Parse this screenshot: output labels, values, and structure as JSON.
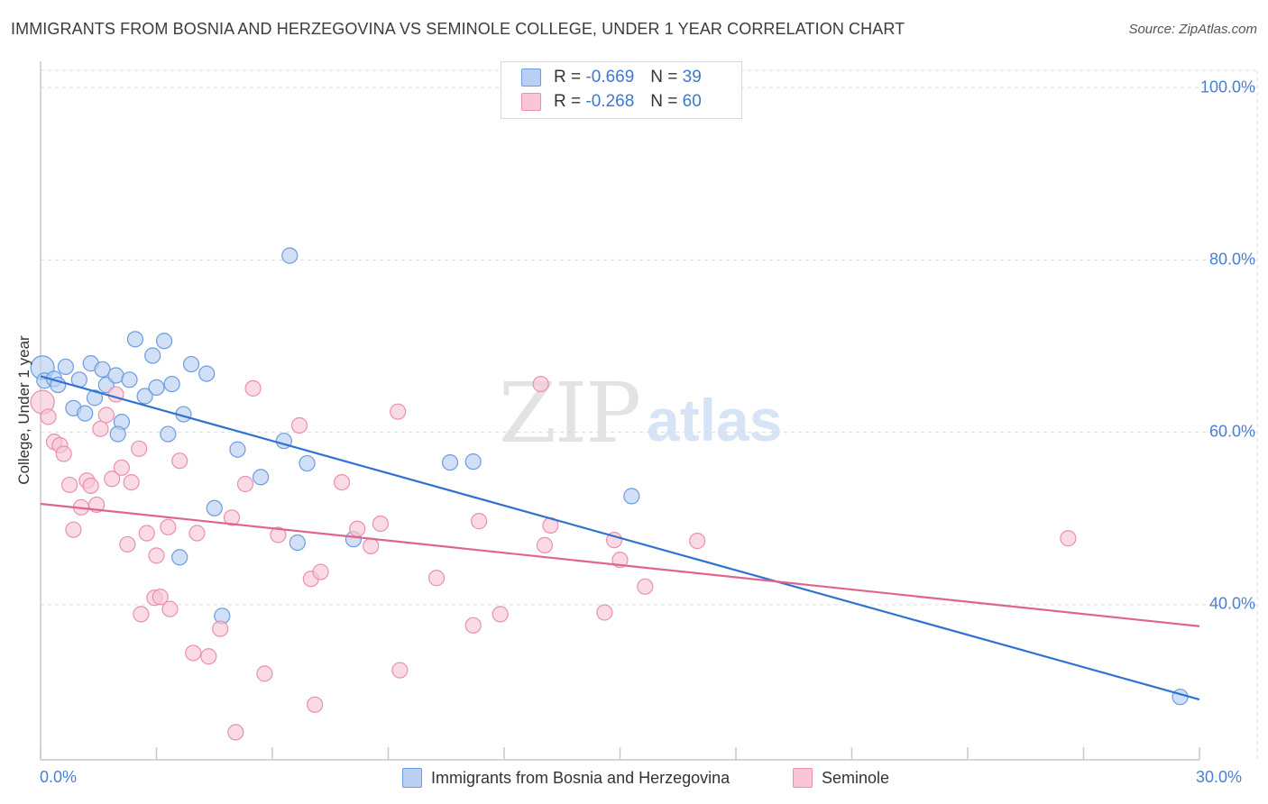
{
  "title": "IMMIGRANTS FROM BOSNIA AND HERZEGOVINA VS SEMINOLE COLLEGE, UNDER 1 YEAR CORRELATION CHART",
  "source": "Source: ZipAtlas.com",
  "watermark": {
    "zip": "ZIP",
    "atlas": "atlas"
  },
  "legend": {
    "rows": [
      {
        "r_label": "R =",
        "r_value": "-0.669",
        "n_label": "N =",
        "n_value": "39"
      },
      {
        "r_label": "R =",
        "r_value": "-0.268",
        "n_label": "N =",
        "n_value": "60"
      }
    ]
  },
  "chart_data": {
    "type": "scatter",
    "title": "IMMIGRANTS FROM BOSNIA AND HERZEGOVINA VS SEMINOLE COLLEGE, UNDER 1 YEAR CORRELATION CHART",
    "xlabel": "",
    "ylabel": "College, Under 1 year",
    "xlim": [
      0,
      30
    ],
    "ylim": [
      22,
      102
    ],
    "x_tick_labels": [
      "0.0%",
      "30.0%"
    ],
    "y_ticks": [
      {
        "value": 40,
        "label": "40.0%"
      },
      {
        "value": 60,
        "label": "60.0%"
      },
      {
        "value": 80,
        "label": "80.0%"
      },
      {
        "value": 100,
        "label": "100.0%"
      }
    ],
    "grid": true,
    "series": [
      {
        "name": "Immigrants from Bosnia and Herzegovina",
        "color": "#6c9be0",
        "fill": "#b9d0f2",
        "line_color": "#2f72d0",
        "trend": {
          "x": [
            0,
            30
          ],
          "y": [
            66.5,
            29.0
          ]
        },
        "points": [
          [
            0.05,
            67.5
          ],
          [
            0.1,
            66.0
          ],
          [
            0.35,
            66.2
          ],
          [
            0.45,
            65.5
          ],
          [
            0.65,
            67.6
          ],
          [
            0.85,
            62.8
          ],
          [
            1.0,
            66.1
          ],
          [
            1.15,
            62.2
          ],
          [
            1.3,
            68.0
          ],
          [
            1.4,
            64.0
          ],
          [
            1.6,
            67.3
          ],
          [
            1.7,
            65.5
          ],
          [
            1.95,
            66.6
          ],
          [
            2.1,
            61.2
          ],
          [
            2.3,
            66.1
          ],
          [
            2.45,
            70.8
          ],
          [
            2.7,
            64.2
          ],
          [
            2.9,
            68.9
          ],
          [
            3.0,
            65.2
          ],
          [
            3.2,
            70.6
          ],
          [
            3.3,
            59.8
          ],
          [
            3.4,
            65.6
          ],
          [
            3.7,
            62.1
          ],
          [
            3.9,
            67.9
          ],
          [
            4.3,
            66.8
          ],
          [
            4.5,
            51.2
          ],
          [
            4.7,
            38.7
          ],
          [
            5.1,
            58.0
          ],
          [
            5.7,
            54.8
          ],
          [
            6.3,
            59.0
          ],
          [
            6.45,
            80.5
          ],
          [
            6.65,
            47.2
          ],
          [
            6.9,
            56.4
          ],
          [
            8.1,
            47.6
          ],
          [
            10.6,
            56.5
          ],
          [
            11.2,
            56.6
          ],
          [
            15.3,
            52.6
          ],
          [
            2.0,
            59.8
          ],
          [
            3.6,
            45.5
          ],
          [
            29.5,
            29.3
          ]
        ]
      },
      {
        "name": "Seminole",
        "color": "#ea8fae",
        "fill": "#f8c6d6",
        "line_color": "#e0648e",
        "trend": {
          "x": [
            0,
            30
          ],
          "y": [
            51.7,
            37.5
          ]
        },
        "points": [
          [
            0.05,
            63.5
          ],
          [
            0.2,
            61.8
          ],
          [
            0.35,
            58.9
          ],
          [
            0.5,
            58.5
          ],
          [
            0.6,
            57.5
          ],
          [
            0.75,
            53.9
          ],
          [
            0.85,
            48.7
          ],
          [
            1.05,
            51.3
          ],
          [
            1.2,
            54.4
          ],
          [
            1.3,
            53.8
          ],
          [
            1.45,
            51.6
          ],
          [
            1.55,
            60.4
          ],
          [
            1.7,
            62.0
          ],
          [
            1.85,
            54.6
          ],
          [
            1.95,
            64.4
          ],
          [
            2.1,
            55.9
          ],
          [
            2.25,
            47.0
          ],
          [
            2.35,
            54.2
          ],
          [
            2.55,
            58.1
          ],
          [
            2.6,
            38.9
          ],
          [
            2.75,
            48.3
          ],
          [
            2.95,
            40.8
          ],
          [
            3.0,
            45.7
          ],
          [
            3.1,
            40.9
          ],
          [
            3.3,
            49.0
          ],
          [
            3.35,
            39.5
          ],
          [
            3.6,
            56.7
          ],
          [
            3.95,
            34.4
          ],
          [
            4.05,
            48.3
          ],
          [
            4.35,
            34.0
          ],
          [
            4.65,
            37.2
          ],
          [
            4.95,
            50.1
          ],
          [
            5.05,
            25.2
          ],
          [
            5.3,
            54.0
          ],
          [
            5.5,
            65.1
          ],
          [
            5.8,
            32.0
          ],
          [
            6.15,
            48.1
          ],
          [
            6.7,
            60.8
          ],
          [
            7.0,
            43.0
          ],
          [
            7.1,
            28.4
          ],
          [
            7.25,
            43.8
          ],
          [
            7.8,
            54.2
          ],
          [
            8.2,
            48.8
          ],
          [
            8.55,
            46.8
          ],
          [
            8.8,
            49.4
          ],
          [
            9.25,
            62.4
          ],
          [
            9.3,
            32.4
          ],
          [
            10.25,
            43.1
          ],
          [
            11.2,
            37.6
          ],
          [
            11.35,
            49.7
          ],
          [
            11.9,
            38.9
          ],
          [
            12.95,
            65.6
          ],
          [
            13.05,
            46.9
          ],
          [
            13.2,
            49.2
          ],
          [
            14.6,
            39.1
          ],
          [
            14.85,
            47.5
          ],
          [
            15.0,
            45.2
          ],
          [
            15.65,
            42.1
          ],
          [
            17.0,
            47.4
          ],
          [
            26.6,
            47.7
          ]
        ]
      }
    ]
  }
}
